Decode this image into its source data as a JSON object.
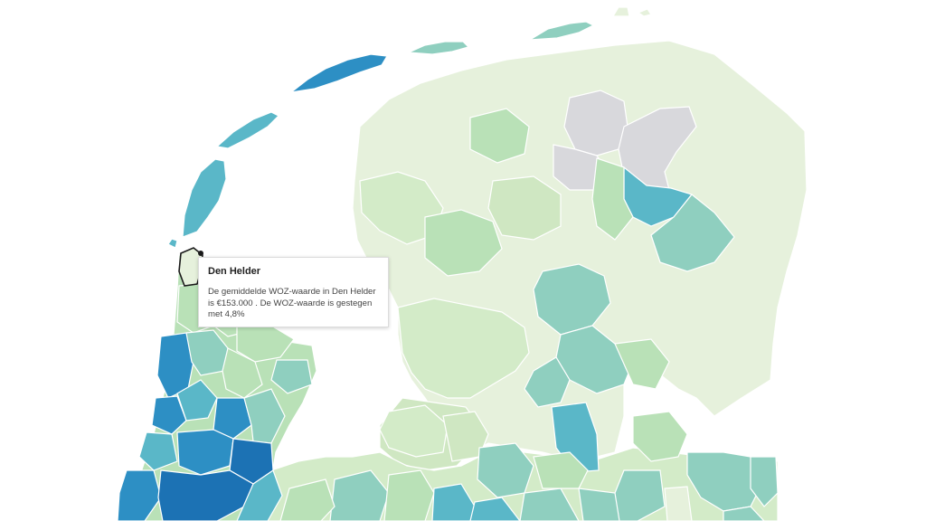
{
  "tooltip": {
    "title": "Den Helder",
    "body": "De gemiddelde WOZ-waarde in Den Helder is €153.000 . De WOZ-waarde is gestegen met 4,8%"
  },
  "colors": {
    "water": "#ffffff",
    "border": "#ffffff",
    "selected_outline": "#1a1a1a",
    "no_data": "#d8d8dc",
    "scale": [
      "#e6f1dc",
      "#d3ebc8",
      "#b9e1b7",
      "#8fcfbf",
      "#5ab7c8",
      "#2d8fc4",
      "#1c72b4"
    ]
  }
}
